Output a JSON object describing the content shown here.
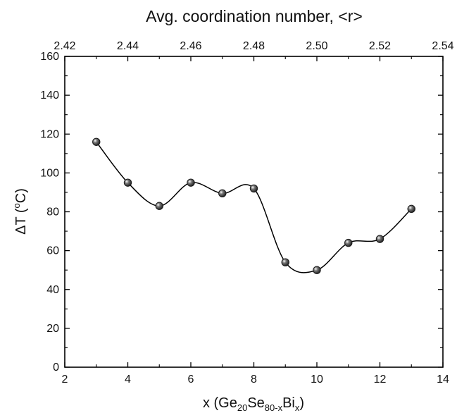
{
  "chart_data": {
    "type": "scatter",
    "title": "Avg. coordination number, <r>",
    "xlabel": {
      "main": "x (Ge",
      "sub1": "20",
      "mid": "Se",
      "sub2": "80-x",
      "end": "Bi",
      "sub3": "x",
      "close": ")"
    },
    "ylabel": {
      "main": "ΔT (",
      "sup": "o",
      "end": "C)"
    },
    "xlim": [
      2,
      14
    ],
    "ylim": [
      0,
      160
    ],
    "top_axis": {
      "label": "Avg. coordination number, <r>",
      "lim": [
        2.42,
        2.54
      ],
      "ticks": [
        "2.42",
        "2.44",
        "2.46",
        "2.48",
        "2.50",
        "2.52",
        "2.54"
      ]
    },
    "x_ticks": [
      "2",
      "4",
      "6",
      "8",
      "10",
      "12",
      "14"
    ],
    "y_ticks": [
      "0",
      "20",
      "40",
      "60",
      "80",
      "100",
      "120",
      "140",
      "160"
    ],
    "grid": false,
    "smooth_curve": true,
    "series": [
      {
        "x": [
          3,
          4,
          5,
          6,
          7,
          8,
          9,
          10,
          11,
          12,
          13
        ],
        "y": [
          116,
          95,
          83,
          95,
          89.5,
          92,
          54,
          50,
          64,
          66,
          81.5
        ]
      }
    ],
    "colors": {
      "line": "#000000",
      "marker_fill": "#1a1a1a",
      "marker_highlight": "#ffffff"
    }
  }
}
